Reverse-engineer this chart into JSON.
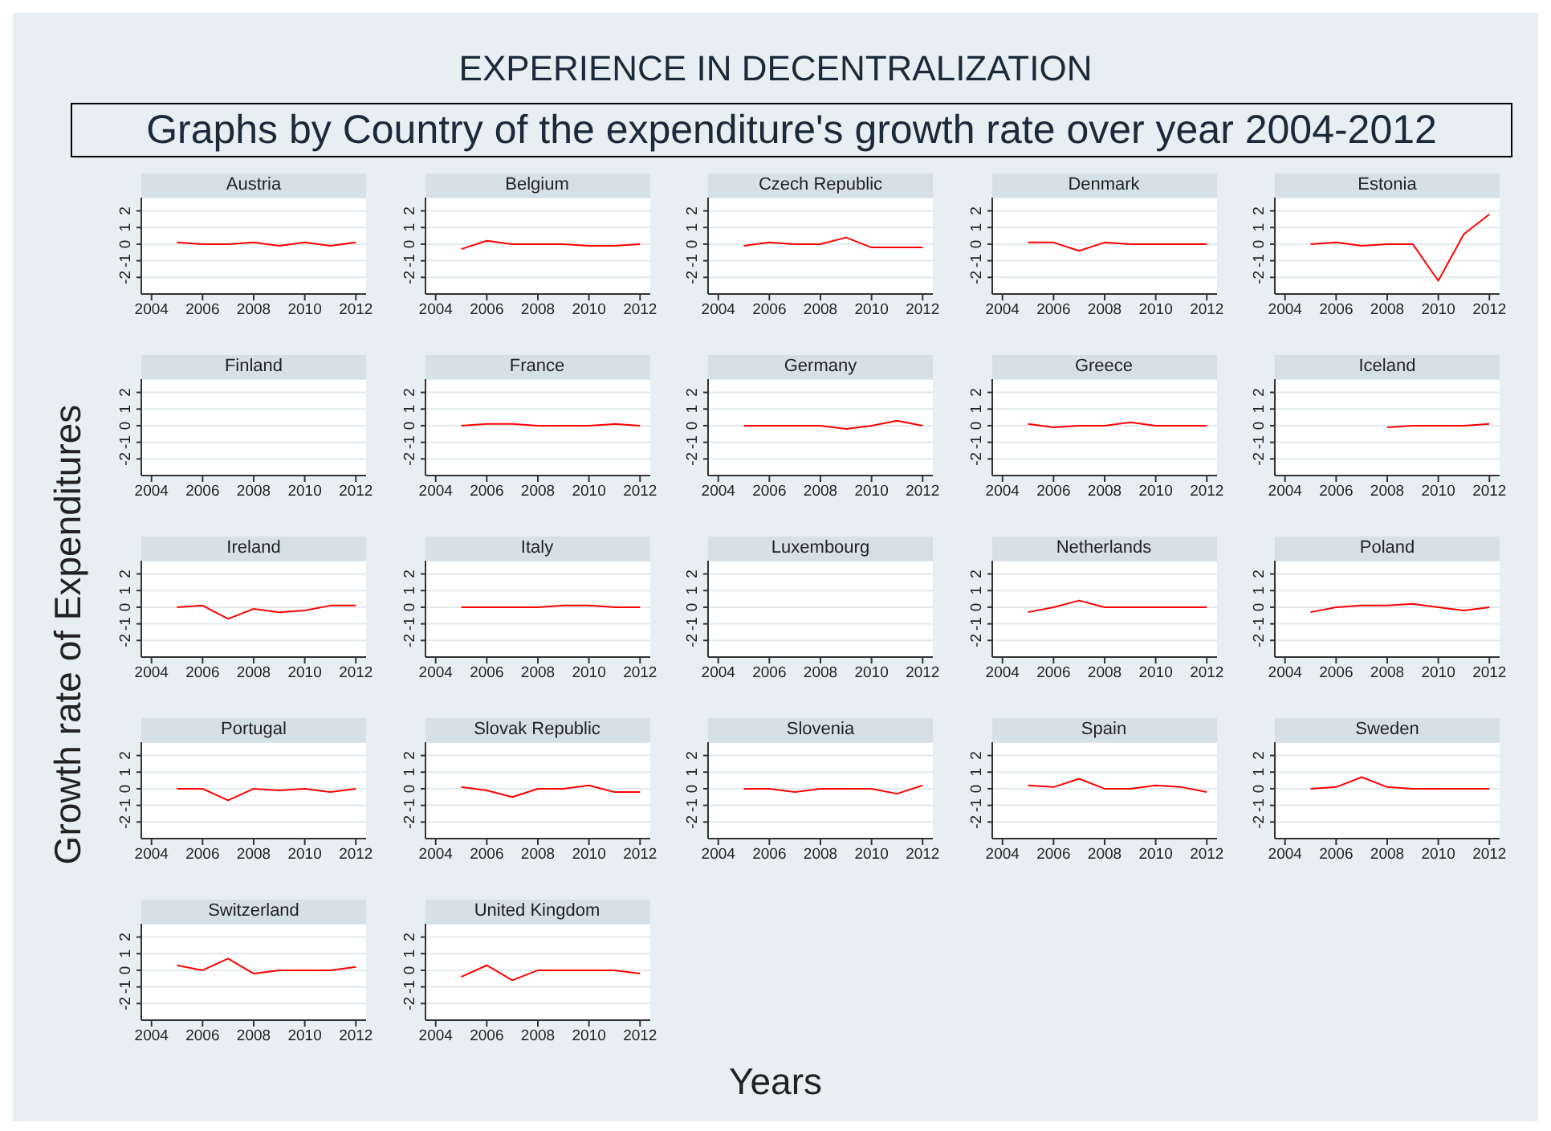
{
  "chart_data": [
    {
      "type": "other",
      "title": "EXPERIENCE IN DECENTRALIZATION",
      "subtitle": "Graphs by Country of the expenditure's growth rate over year 2004-2012",
      "xlabel": "Years",
      "ylabel": "Growth rate of Expenditures"
    },
    {
      "type": "line",
      "title": "Austria",
      "x": [
        2005,
        2006,
        2007,
        2008,
        2009,
        2010,
        2011,
        2012
      ],
      "series": [
        {
          "color": "#ff0000",
          "values": [
            0.1,
            0,
            0,
            0.1,
            -0.1,
            0.1,
            -0.1,
            0.1
          ]
        }
      ],
      "xlim": [
        2003.6,
        2012.4
      ],
      "ylim": [
        -3,
        2.8
      ],
      "xticks": [
        2004,
        2006,
        2008,
        2010,
        2012
      ],
      "yticks": [
        -2,
        -1,
        0,
        1,
        2
      ],
      "grid": "y",
      "marker": "none"
    },
    {
      "type": "line",
      "title": "Belgium",
      "x": [
        2005,
        2006,
        2007,
        2008,
        2009,
        2010,
        2011,
        2012
      ],
      "series": [
        {
          "color": "#ff0000",
          "values": [
            -0.3,
            0.2,
            0,
            0,
            0,
            -0.1,
            -0.1,
            0
          ]
        }
      ],
      "xlim": [
        2003.6,
        2012.4
      ],
      "ylim": [
        -3,
        2.8
      ],
      "xticks": [
        2004,
        2006,
        2008,
        2010,
        2012
      ],
      "yticks": [
        -2,
        -1,
        0,
        1,
        2
      ],
      "grid": "y",
      "marker": "none"
    },
    {
      "type": "line",
      "title": "Czech Republic",
      "x": [
        2005,
        2006,
        2007,
        2008,
        2009,
        2010,
        2011,
        2012
      ],
      "series": [
        {
          "color": "#ff0000",
          "values": [
            -0.1,
            0.1,
            0,
            0,
            0.4,
            -0.2,
            -0.2,
            -0.2
          ]
        }
      ],
      "xlim": [
        2003.6,
        2012.4
      ],
      "ylim": [
        -3,
        2.8
      ],
      "xticks": [
        2004,
        2006,
        2008,
        2010,
        2012
      ],
      "yticks": [
        -2,
        -1,
        0,
        1,
        2
      ],
      "grid": "y",
      "marker": "none"
    },
    {
      "type": "line",
      "title": "Denmark",
      "x": [
        2005,
        2006,
        2007,
        2008,
        2009,
        2010,
        2011,
        2012
      ],
      "series": [
        {
          "color": "#ff0000",
          "values": [
            0.1,
            0.1,
            -0.4,
            0.1,
            0,
            0,
            0,
            0
          ]
        }
      ],
      "xlim": [
        2003.6,
        2012.4
      ],
      "ylim": [
        -3,
        2.8
      ],
      "xticks": [
        2004,
        2006,
        2008,
        2010,
        2012
      ],
      "yticks": [
        -2,
        -1,
        0,
        1,
        2
      ],
      "grid": "y",
      "marker": "none"
    },
    {
      "type": "line",
      "title": "Estonia",
      "x": [
        2005,
        2006,
        2007,
        2008,
        2009,
        2010,
        2011,
        2012
      ],
      "series": [
        {
          "color": "#ff0000",
          "values": [
            0,
            0.1,
            -0.1,
            0,
            0,
            -2.2,
            0.6,
            1.8
          ]
        }
      ],
      "xlim": [
        2003.6,
        2012.4
      ],
      "ylim": [
        -3,
        2.8
      ],
      "xticks": [
        2004,
        2006,
        2008,
        2010,
        2012
      ],
      "yticks": [
        -2,
        -1,
        0,
        1,
        2
      ],
      "grid": "y",
      "marker": "none"
    },
    {
      "type": "line",
      "title": "Finland",
      "xlim": [
        2003.6,
        2012.4
      ],
      "ylim": [
        -3,
        2.8
      ],
      "xticks": [
        2004,
        2006,
        2008,
        2010,
        2012
      ],
      "yticks": [
        -2,
        -1,
        0,
        1,
        2
      ],
      "grid": "y"
    },
    {
      "type": "line",
      "title": "France",
      "x": [
        2005,
        2006,
        2007,
        2008,
        2009,
        2010,
        2011,
        2012
      ],
      "series": [
        {
          "color": "#ff0000",
          "values": [
            0,
            0.1,
            0.1,
            0,
            0,
            0,
            0.1,
            0
          ]
        }
      ],
      "xlim": [
        2003.6,
        2012.4
      ],
      "ylim": [
        -3,
        2.8
      ],
      "xticks": [
        2004,
        2006,
        2008,
        2010,
        2012
      ],
      "yticks": [
        -2,
        -1,
        0,
        1,
        2
      ],
      "grid": "y",
      "marker": "none"
    },
    {
      "type": "line",
      "title": "Germany",
      "x": [
        2005,
        2006,
        2007,
        2008,
        2009,
        2010,
        2011,
        2012
      ],
      "series": [
        {
          "color": "#ff0000",
          "values": [
            0,
            0,
            0,
            0,
            -0.2,
            0,
            0.3,
            0
          ]
        }
      ],
      "xlim": [
        2003.6,
        2012.4
      ],
      "ylim": [
        -3,
        2.8
      ],
      "xticks": [
        2004,
        2006,
        2008,
        2010,
        2012
      ],
      "yticks": [
        -2,
        -1,
        0,
        1,
        2
      ],
      "grid": "y",
      "marker": "none"
    },
    {
      "type": "line",
      "title": "Greece",
      "x": [
        2005,
        2006,
        2007,
        2008,
        2009,
        2010,
        2011,
        2012
      ],
      "series": [
        {
          "color": "#ff0000",
          "values": [
            0.1,
            -0.1,
            0,
            0,
            0.2,
            0,
            0,
            0
          ]
        }
      ],
      "xlim": [
        2003.6,
        2012.4
      ],
      "ylim": [
        -3,
        2.8
      ],
      "xticks": [
        2004,
        2006,
        2008,
        2010,
        2012
      ],
      "yticks": [
        -2,
        -1,
        0,
        1,
        2
      ],
      "grid": "y",
      "marker": "none"
    },
    {
      "type": "line",
      "title": "Iceland",
      "x": [
        2008,
        2009,
        2010,
        2011,
        2012
      ],
      "series": [
        {
          "color": "#ff0000",
          "values": [
            -0.1,
            0,
            0,
            0,
            0.1
          ]
        }
      ],
      "xlim": [
        2003.6,
        2012.4
      ],
      "ylim": [
        -3,
        2.8
      ],
      "xticks": [
        2004,
        2006,
        2008,
        2010,
        2012
      ],
      "yticks": [
        -2,
        -1,
        0,
        1,
        2
      ],
      "grid": "y",
      "marker": "none"
    },
    {
      "type": "line",
      "title": "Ireland",
      "x": [
        2005,
        2006,
        2007,
        2008,
        2009,
        2010,
        2011,
        2012
      ],
      "series": [
        {
          "color": "#ff0000",
          "values": [
            0,
            0.1,
            -0.7,
            -0.1,
            -0.3,
            -0.2,
            0.1,
            0.1
          ]
        }
      ],
      "xlim": [
        2003.6,
        2012.4
      ],
      "ylim": [
        -3,
        2.8
      ],
      "xticks": [
        2004,
        2006,
        2008,
        2010,
        2012
      ],
      "yticks": [
        -2,
        -1,
        0,
        1,
        2
      ],
      "grid": "y",
      "marker": "none"
    },
    {
      "type": "line",
      "title": "Italy",
      "x": [
        2005,
        2006,
        2007,
        2008,
        2009,
        2010,
        2011,
        2012
      ],
      "series": [
        {
          "color": "#ff0000",
          "values": [
            0,
            0,
            0,
            0,
            0.1,
            0.1,
            0,
            0
          ]
        }
      ],
      "xlim": [
        2003.6,
        2012.4
      ],
      "ylim": [
        -3,
        2.8
      ],
      "xticks": [
        2004,
        2006,
        2008,
        2010,
        2012
      ],
      "yticks": [
        -2,
        -1,
        0,
        1,
        2
      ],
      "grid": "y",
      "marker": "none"
    },
    {
      "type": "line",
      "title": "Luxembourg",
      "xlim": [
        2003.6,
        2012.4
      ],
      "ylim": [
        -3,
        2.8
      ],
      "xticks": [
        2004,
        2006,
        2008,
        2010,
        2012
      ],
      "yticks": [
        -2,
        -1,
        0,
        1,
        2
      ],
      "grid": "y"
    },
    {
      "type": "line",
      "title": "Netherlands",
      "x": [
        2005,
        2006,
        2007,
        2008,
        2009,
        2010,
        2011,
        2012
      ],
      "series": [
        {
          "color": "#ff0000",
          "values": [
            -0.3,
            0,
            0.4,
            0,
            0,
            0,
            0,
            0
          ]
        }
      ],
      "xlim": [
        2003.6,
        2012.4
      ],
      "ylim": [
        -3,
        2.8
      ],
      "xticks": [
        2004,
        2006,
        2008,
        2010,
        2012
      ],
      "yticks": [
        -2,
        -1,
        0,
        1,
        2
      ],
      "grid": "y",
      "marker": "none"
    },
    {
      "type": "line",
      "title": "Poland",
      "x": [
        2005,
        2006,
        2007,
        2008,
        2009,
        2010,
        2011,
        2012
      ],
      "series": [
        {
          "color": "#ff0000",
          "values": [
            -0.3,
            0,
            0.1,
            0.1,
            0.2,
            0,
            -0.2,
            0
          ]
        }
      ],
      "xlim": [
        2003.6,
        2012.4
      ],
      "ylim": [
        -3,
        2.8
      ],
      "xticks": [
        2004,
        2006,
        2008,
        2010,
        2012
      ],
      "yticks": [
        -2,
        -1,
        0,
        1,
        2
      ],
      "grid": "y",
      "marker": "none"
    },
    {
      "type": "line",
      "title": "Portugal",
      "x": [
        2005,
        2006,
        2007,
        2008,
        2009,
        2010,
        2011,
        2012
      ],
      "series": [
        {
          "color": "#ff0000",
          "values": [
            0,
            0,
            -0.7,
            0,
            -0.1,
            0,
            -0.2,
            0
          ]
        }
      ],
      "xlim": [
        2003.6,
        2012.4
      ],
      "ylim": [
        -3,
        2.8
      ],
      "xticks": [
        2004,
        2006,
        2008,
        2010,
        2012
      ],
      "yticks": [
        -2,
        -1,
        0,
        1,
        2
      ],
      "grid": "y",
      "marker": "none"
    },
    {
      "type": "line",
      "title": "Slovak Republic",
      "x": [
        2005,
        2006,
        2007,
        2008,
        2009,
        2010,
        2011,
        2012
      ],
      "series": [
        {
          "color": "#ff0000",
          "values": [
            0.1,
            -0.1,
            -0.5,
            0,
            0,
            0.2,
            -0.2,
            -0.2
          ]
        }
      ],
      "xlim": [
        2003.6,
        2012.4
      ],
      "ylim": [
        -3,
        2.8
      ],
      "xticks": [
        2004,
        2006,
        2008,
        2010,
        2012
      ],
      "yticks": [
        -2,
        -1,
        0,
        1,
        2
      ],
      "grid": "y",
      "marker": "none"
    },
    {
      "type": "line",
      "title": "Slovenia",
      "x": [
        2005,
        2006,
        2007,
        2008,
        2009,
        2010,
        2011,
        2012
      ],
      "series": [
        {
          "color": "#ff0000",
          "values": [
            0,
            0,
            -0.2,
            0,
            0,
            0,
            -0.3,
            0.2
          ]
        }
      ],
      "xlim": [
        2003.6,
        2012.4
      ],
      "ylim": [
        -3,
        2.8
      ],
      "xticks": [
        2004,
        2006,
        2008,
        2010,
        2012
      ],
      "yticks": [
        -2,
        -1,
        0,
        1,
        2
      ],
      "grid": "y",
      "marker": "none"
    },
    {
      "type": "line",
      "title": "Spain",
      "x": [
        2005,
        2006,
        2007,
        2008,
        2009,
        2010,
        2011,
        2012
      ],
      "series": [
        {
          "color": "#ff0000",
          "values": [
            0.2,
            0.1,
            0.6,
            0,
            0,
            0.2,
            0.1,
            -0.2
          ]
        }
      ],
      "xlim": [
        2003.6,
        2012.4
      ],
      "ylim": [
        -3,
        2.8
      ],
      "xticks": [
        2004,
        2006,
        2008,
        2010,
        2012
      ],
      "yticks": [
        -2,
        -1,
        0,
        1,
        2
      ],
      "grid": "y",
      "marker": "none"
    },
    {
      "type": "line",
      "title": "Sweden",
      "x": [
        2005,
        2006,
        2007,
        2008,
        2009,
        2010,
        2011,
        2012
      ],
      "series": [
        {
          "color": "#ff0000",
          "values": [
            0,
            0.1,
            0.7,
            0.1,
            0,
            0,
            0,
            0
          ]
        }
      ],
      "xlim": [
        2003.6,
        2012.4
      ],
      "ylim": [
        -3,
        2.8
      ],
      "xticks": [
        2004,
        2006,
        2008,
        2010,
        2012
      ],
      "yticks": [
        -2,
        -1,
        0,
        1,
        2
      ],
      "grid": "y",
      "marker": "none"
    },
    {
      "type": "line",
      "title": "Switzerland",
      "x": [
        2005,
        2006,
        2007,
        2008,
        2009,
        2010,
        2011,
        2012
      ],
      "series": [
        {
          "color": "#ff0000",
          "values": [
            0.3,
            0,
            0.7,
            -0.2,
            0,
            0,
            0,
            0.2
          ]
        }
      ],
      "xlim": [
        2003.6,
        2012.4
      ],
      "ylim": [
        -3,
        2.8
      ],
      "xticks": [
        2004,
        2006,
        2008,
        2010,
        2012
      ],
      "yticks": [
        -2,
        -1,
        0,
        1,
        2
      ],
      "grid": "y",
      "marker": "none"
    },
    {
      "type": "line",
      "title": "United Kingdom",
      "x": [
        2005,
        2006,
        2007,
        2008,
        2009,
        2010,
        2011,
        2012
      ],
      "series": [
        {
          "color": "#ff0000",
          "values": [
            -0.4,
            0.3,
            -0.6,
            0,
            0,
            0,
            0,
            -0.2
          ]
        }
      ],
      "xlim": [
        2003.6,
        2012.4
      ],
      "ylim": [
        -3,
        2.8
      ],
      "xticks": [
        2004,
        2006,
        2008,
        2010,
        2012
      ],
      "yticks": [
        -2,
        -1,
        0,
        1,
        2
      ],
      "grid": "y",
      "marker": "none"
    }
  ]
}
